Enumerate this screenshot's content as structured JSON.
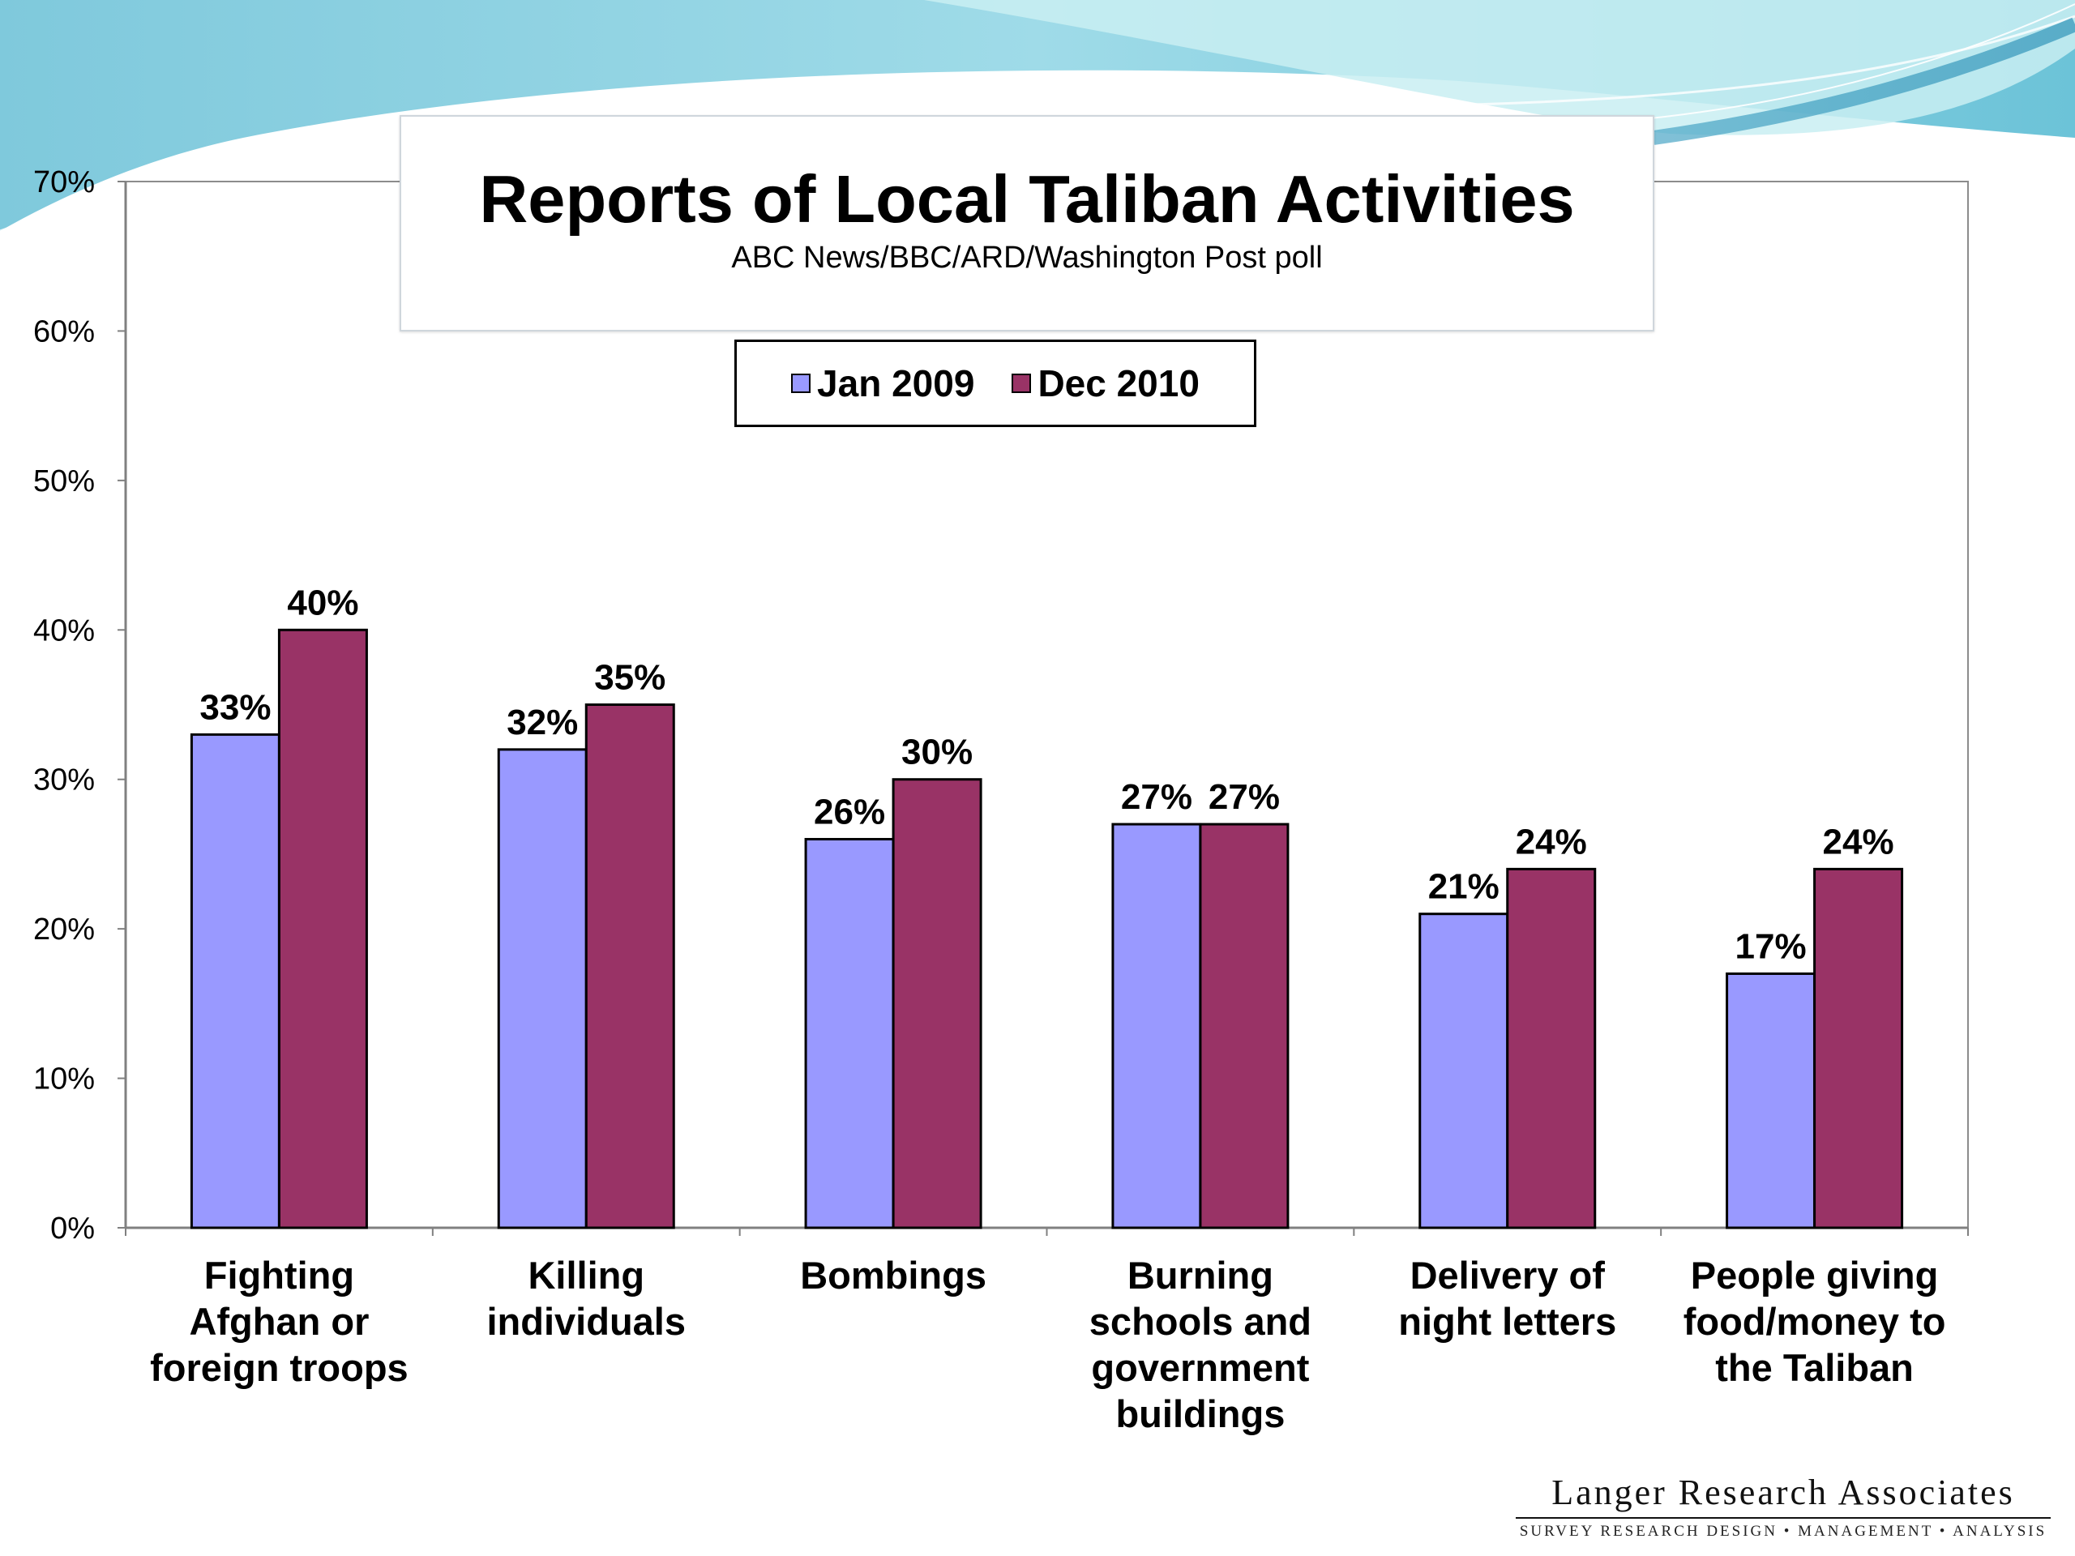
{
  "chart_data": {
    "type": "bar",
    "title": "Reports of Local Taliban Activities",
    "subtitle": "ABC News/BBC/ARD/Washington Post poll",
    "categories": [
      [
        "Fighting",
        "Afghan or",
        "foreign troops"
      ],
      [
        "Killing",
        "individuals"
      ],
      [
        "Bombings"
      ],
      [
        "Burning",
        "schools and",
        "government",
        "buildings"
      ],
      [
        "Delivery of",
        "night letters"
      ],
      [
        "People giving",
        "food/money to",
        "the Taliban"
      ]
    ],
    "series": [
      {
        "name": "Jan 2009",
        "color": "#9999ff",
        "values": [
          33,
          32,
          26,
          27,
          21,
          17
        ],
        "labels": [
          "33%",
          "32%",
          "26%",
          "27%",
          "21%",
          "17%"
        ]
      },
      {
        "name": "Dec 2010",
        "color": "#993366",
        "values": [
          40,
          35,
          30,
          27,
          24,
          24
        ],
        "labels": [
          "40%",
          "35%",
          "30%",
          "27%",
          "24%",
          "24%"
        ]
      }
    ],
    "ylim": [
      0,
      70
    ],
    "yticks": [
      0,
      10,
      20,
      30,
      40,
      50,
      60,
      70
    ],
    "ytick_labels": [
      "0%",
      "10%",
      "20%",
      "30%",
      "40%",
      "50%",
      "60%",
      "70%"
    ],
    "grid": false,
    "legend_position": "top-center",
    "xlabel": "",
    "ylabel": ""
  },
  "logo": {
    "name": "Langer Research Associates",
    "tagline": "SURVEY RESEARCH DESIGN • MANAGEMENT • ANALYSIS"
  }
}
